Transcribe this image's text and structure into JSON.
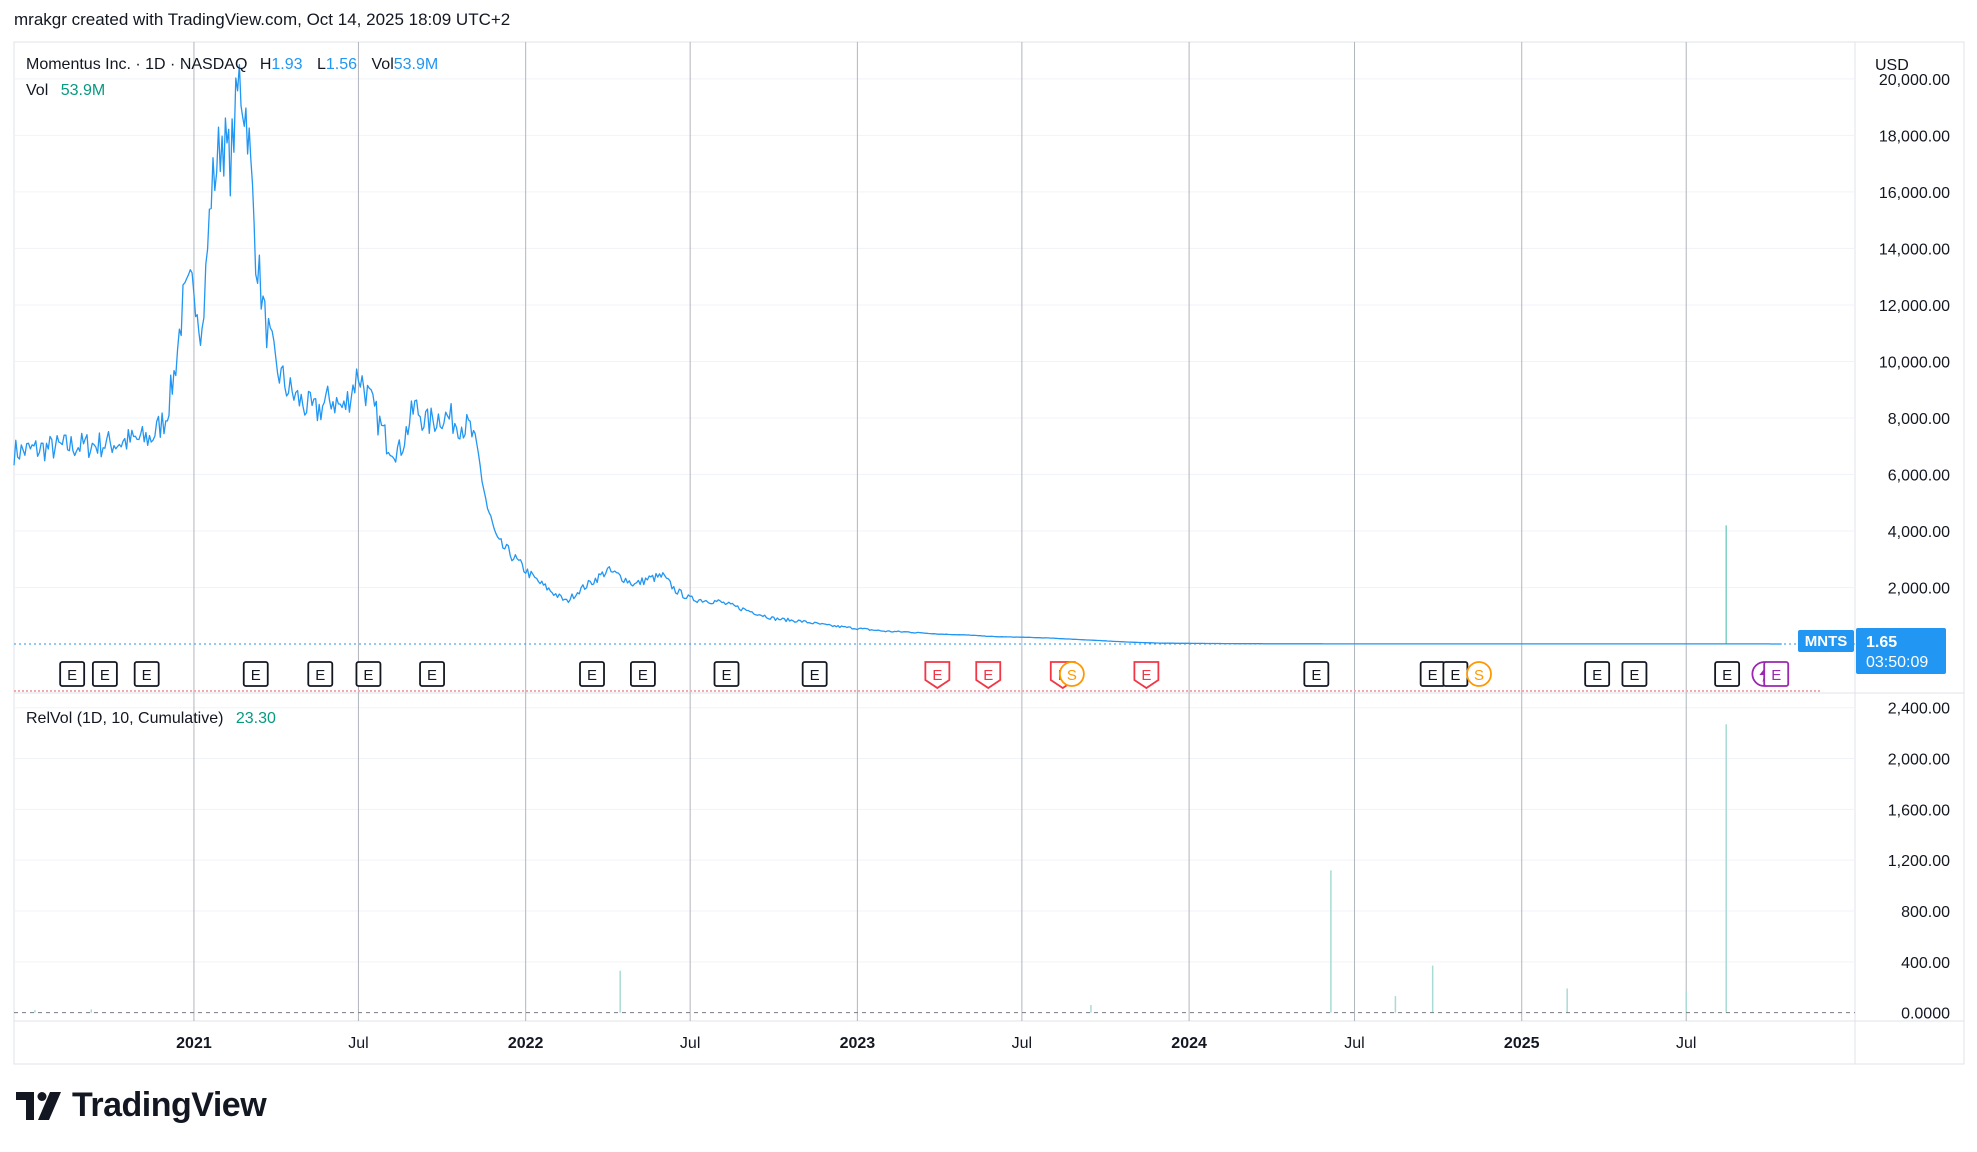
{
  "header": {
    "text": "mrakgr created with TradingView.com, Oct 14, 2025 18:09 UTC+2"
  },
  "legend": {
    "symbol": "Momentus Inc. · 1D · NASDAQ",
    "h_label": "H",
    "h_value": "1.93",
    "l_label": "L",
    "l_value": "1.56",
    "vol_label": "Vol",
    "vol_value": "53.9M"
  },
  "vol_legend": {
    "label": "Vol",
    "value": "53.9M"
  },
  "currency": "USD",
  "price_tag": {
    "symbol": "MNTS",
    "price": "1.65",
    "countdown": "03:50:09"
  },
  "relvol_legend": {
    "label": "RelVol (1D, 10, Cumulative)",
    "value": "23.30"
  },
  "brand": {
    "name": "TradingView"
  },
  "colors": {
    "line": "#2196f3",
    "text": "#131722",
    "grid": "#f0f3fa",
    "vline": "#b2b5be",
    "green": "#089981",
    "blue_label": "#2962ff",
    "tag_bg": "#2196f3",
    "earn_red": "#f23645",
    "split_orange": "#ff9800",
    "div_purple": "#9c27b0"
  },
  "events": [
    {
      "date": "2020-08-20",
      "type": "E"
    },
    {
      "date": "2020-09-25",
      "type": "E"
    },
    {
      "date": "2020-11-10",
      "type": "E"
    },
    {
      "date": "2021-03-10",
      "type": "E"
    },
    {
      "date": "2021-05-20",
      "type": "E"
    },
    {
      "date": "2021-07-12",
      "type": "E"
    },
    {
      "date": "2021-09-20",
      "type": "E"
    },
    {
      "date": "2022-03-15",
      "type": "E"
    },
    {
      "date": "2022-05-10",
      "type": "E"
    },
    {
      "date": "2022-08-10",
      "type": "E"
    },
    {
      "date": "2022-11-15",
      "type": "E"
    },
    {
      "date": "2023-03-30",
      "type": "E",
      "neg": true
    },
    {
      "date": "2023-05-25",
      "type": "E",
      "neg": true
    },
    {
      "date": "2023-08-15",
      "type": "E",
      "neg": true
    },
    {
      "date": "2023-08-25",
      "type": "S"
    },
    {
      "date": "2023-11-15",
      "type": "E",
      "neg": true
    },
    {
      "date": "2024-05-20",
      "type": "E"
    },
    {
      "date": "2024-09-25",
      "type": "E"
    },
    {
      "date": "2024-10-20",
      "type": "E"
    },
    {
      "date": "2024-11-15",
      "type": "S"
    },
    {
      "date": "2025-03-25",
      "type": "E"
    },
    {
      "date": "2025-05-05",
      "type": "E"
    },
    {
      "date": "2025-08-15",
      "type": "E"
    },
    {
      "date": "2025-09-25",
      "type": "D"
    },
    {
      "date": "2025-10-08",
      "type": "E",
      "purple": true
    }
  ],
  "chart_data": [
    {
      "type": "line",
      "name": "Momentus Inc. price",
      "x_axis": {
        "ticks": [
          "2021",
          "Jul",
          "2022",
          "Jul",
          "2023",
          "Jul",
          "2024",
          "Jul",
          "2025",
          "Jul"
        ],
        "tick_dates": [
          "2021-01-01",
          "2021-07-01",
          "2022-01-01",
          "2022-07-01",
          "2023-01-01",
          "2023-07-01",
          "2024-01-01",
          "2024-07-01",
          "2025-01-01",
          "2025-07-01"
        ],
        "range": [
          "2020-06-17",
          "2025-12-15"
        ]
      },
      "y_axis": {
        "ticks": [
          "2,000.00",
          "4,000.00",
          "6,000.00",
          "8,000.00",
          "10,000.00",
          "12,000.00",
          "14,000.00",
          "16,000.00",
          "18,000.00",
          "20,000.00"
        ],
        "tick_values": [
          2000,
          4000,
          6000,
          8000,
          10000,
          12000,
          14000,
          16000,
          18000,
          20000
        ],
        "ylim": [
          0,
          21200
        ]
      },
      "last_value": 1.65,
      "x": [
        "2020-06-17",
        "2020-07-15",
        "2020-08-15",
        "2020-09-15",
        "2020-10-15",
        "2020-11-15",
        "2020-12-01",
        "2020-12-10",
        "2020-12-20",
        "2021-01-01",
        "2021-01-10",
        "2021-01-20",
        "2021-02-01",
        "2021-02-10",
        "2021-02-20",
        "2021-03-01",
        "2021-03-10",
        "2021-03-20",
        "2021-04-01",
        "2021-04-15",
        "2021-05-01",
        "2021-05-15",
        "2021-06-01",
        "2021-06-15",
        "2021-07-01",
        "2021-07-15",
        "2021-08-01",
        "2021-08-15",
        "2021-09-01",
        "2021-09-15",
        "2021-10-01",
        "2021-10-15",
        "2021-11-01",
        "2021-11-10",
        "2021-11-20",
        "2021-12-01",
        "2021-12-15",
        "2022-01-01",
        "2022-01-15",
        "2022-02-01",
        "2022-02-15",
        "2022-03-01",
        "2022-03-15",
        "2022-04-01",
        "2022-04-15",
        "2022-05-01",
        "2022-05-15",
        "2022-06-01",
        "2022-06-15",
        "2022-07-01",
        "2022-08-01",
        "2022-09-01",
        "2022-10-01",
        "2022-11-01",
        "2022-12-01",
        "2023-01-01",
        "2023-02-01",
        "2023-03-01",
        "2023-04-01",
        "2023-05-01",
        "2023-06-01",
        "2023-07-01",
        "2023-08-01",
        "2023-09-01",
        "2023-10-01",
        "2023-11-01",
        "2023-12-01",
        "2024-03-01",
        "2024-06-01",
        "2024-09-01",
        "2024-12-01",
        "2025-03-01",
        "2025-06-01",
        "2025-09-01",
        "2025-10-14"
      ],
      "values": [
        6800,
        6900,
        7000,
        7050,
        7150,
        7300,
        8000,
        9500,
        12000,
        12800,
        11000,
        16000,
        18000,
        17000,
        20000,
        18500,
        14000,
        11500,
        9800,
        9000,
        8500,
        8200,
        8700,
        8300,
        9600,
        8500,
        7200,
        6800,
        8400,
        7800,
        8100,
        7900,
        7600,
        6600,
        4800,
        3600,
        3200,
        2600,
        2200,
        1800,
        1500,
        1900,
        2200,
        2600,
        2400,
        2100,
        2300,
        2400,
        1900,
        1600,
        1500,
        1200,
        900,
        800,
        650,
        550,
        450,
        420,
        350,
        320,
        260,
        240,
        210,
        160,
        110,
        60,
        30,
        10,
        5,
        3,
        2,
        2,
        2,
        2,
        1.65
      ]
    },
    {
      "type": "bar",
      "name": "Volume",
      "x": [
        "2025-08-14"
      ],
      "values": [
        4200
      ],
      "note": "volume spike drawn on price scale"
    },
    {
      "type": "bar",
      "name": "RelVol (1D, 10, Cumulative)",
      "y_axis": {
        "ticks": [
          "0.0000",
          "400.00",
          "800.00",
          "1,200.00",
          "1,600.00",
          "2,000.00",
          "2,400.00"
        ],
        "tick_values": [
          0,
          400,
          800,
          1200,
          1600,
          2000,
          2400
        ],
        "ylim": [
          -50,
          2500
        ]
      },
      "x": [
        "2020-07-10",
        "2020-09-10",
        "2022-04-15",
        "2023-09-15",
        "2024-06-05",
        "2024-08-15",
        "2024-09-25",
        "2025-02-20",
        "2025-07-01",
        "2025-08-14"
      ],
      "values": [
        20,
        25,
        330,
        60,
        1120,
        130,
        370,
        190,
        170,
        2270
      ],
      "last_value": 23.3
    }
  ]
}
